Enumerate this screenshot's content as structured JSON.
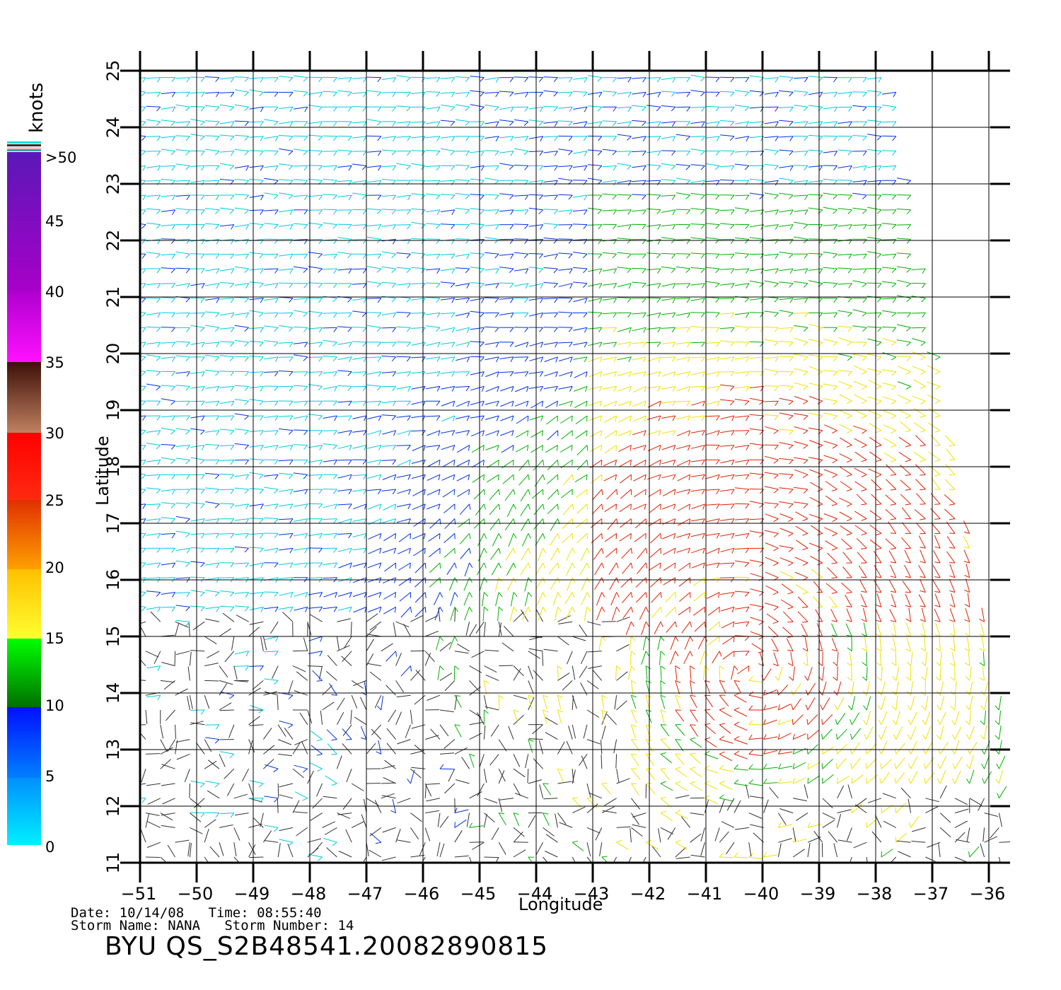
{
  "legend": {
    "unit": "knots",
    "labels": [
      ">50",
      "45",
      "40",
      "35",
      "30",
      "25",
      "20",
      "15",
      "10",
      "5",
      "0"
    ],
    "bands": [
      {
        "range": "45-50",
        "from": "#5a18b8",
        "to": "#a800c8"
      },
      {
        "range": "40-45",
        "from": "#b000d0",
        "to": "#ff10ff"
      },
      {
        "range": "35-40",
        "from": "#3c1008",
        "to": "#c08060"
      },
      {
        "range": "30-35",
        "from": "#ff0000",
        "to": "#ff2a10"
      },
      {
        "range": "25-30",
        "from": "#e03000",
        "to": "#ffa000"
      },
      {
        "range": "20-25",
        "from": "#ffc000",
        "to": "#ffff30"
      },
      {
        "range": "15-20",
        "from": "#00ff00",
        "to": "#007000"
      },
      {
        "range": "10-15",
        "from": "#0010ff",
        "to": "#0080ff"
      },
      {
        "range": "5-10",
        "from": "#0090ff",
        "to": "#00f0ff"
      },
      {
        "range": "0-5",
        "from": "#202020",
        "to": "#909090"
      }
    ]
  },
  "axes": {
    "xlabel": "Longitude",
    "ylabel": "Latitude",
    "x_ticks": [
      "-51",
      "-50",
      "-49",
      "-48",
      "-47",
      "-46",
      "-45",
      "-44",
      "-43",
      "-42",
      "-41",
      "-40",
      "-39",
      "-38",
      "-37",
      "-36"
    ],
    "y_ticks": [
      "11",
      "12",
      "13",
      "14",
      "15",
      "16",
      "17",
      "18",
      "19",
      "20",
      "21",
      "22",
      "23",
      "24",
      "25"
    ],
    "lon_range": [
      -51,
      -35.6
    ],
    "lat_range": [
      11,
      25
    ]
  },
  "map": {
    "type": "wind barb scatterometer plot",
    "storm_center_lonlat": [
      -40.2,
      14.4
    ],
    "vector_colors": {
      "calm": "#303030",
      "light": "#00c8e0",
      "moderate": "#0030e0",
      "fresh": "#00b000",
      "strong": "#f0e000",
      "gale": "#e02000"
    }
  },
  "info": {
    "line1": "Date: 10/14/08   Time: 08:55:40",
    "line2": "Storm Name: NANA   Storm Number: 14",
    "product": "BYU QS_S2B48541.20082890815"
  }
}
